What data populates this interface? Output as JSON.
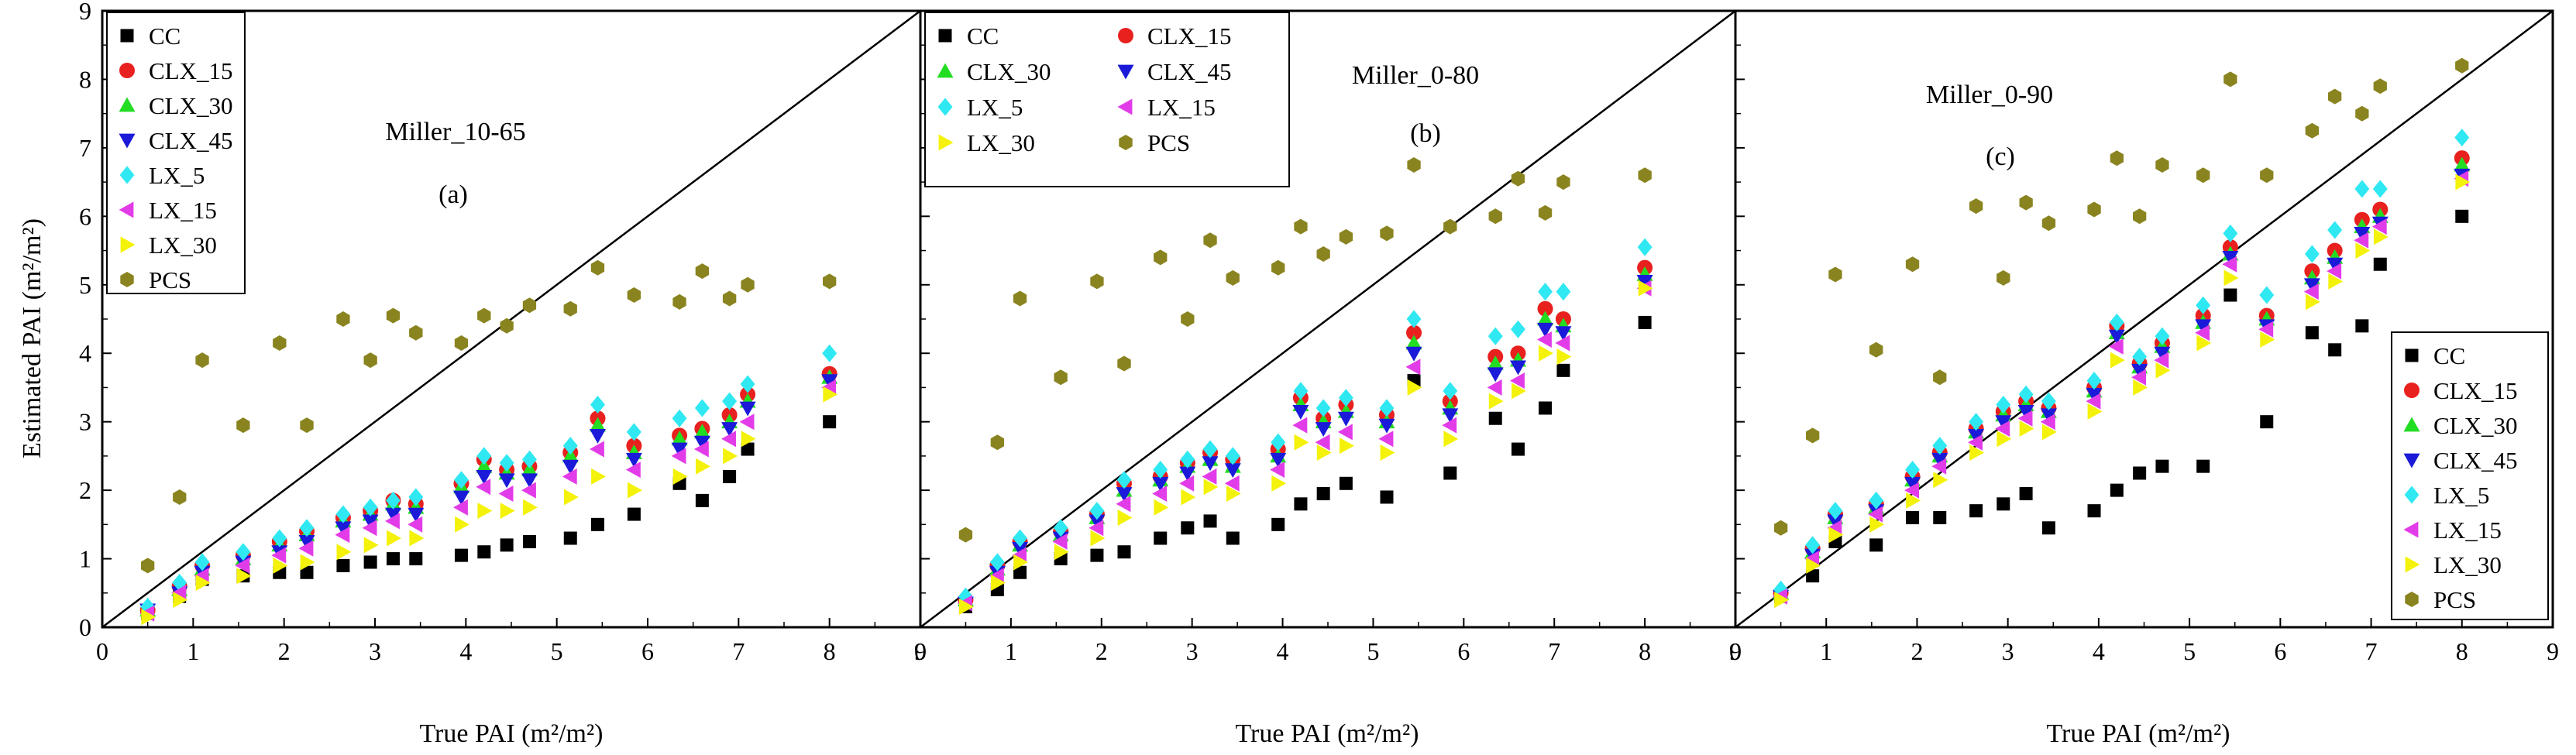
{
  "figure": {
    "shared_ylabel": "Estimated PAI (m²/m²)",
    "shared_xlabel": "True PAI (m²/m²)"
  },
  "series_styles": [
    {
      "name": "CC",
      "marker": "square",
      "color": "#000000"
    },
    {
      "name": "CLX_15",
      "marker": "circle",
      "color": "#e8211f"
    },
    {
      "name": "CLX_30",
      "marker": "triangle-up",
      "color": "#22dd22"
    },
    {
      "name": "CLX_45",
      "marker": "triangle-down",
      "color": "#1a1ad8"
    },
    {
      "name": "LX_5",
      "marker": "diamond",
      "color": "#2fe8f2"
    },
    {
      "name": "LX_15",
      "marker": "triangle-left",
      "color": "#e23ce8"
    },
    {
      "name": "LX_30",
      "marker": "triangle-right",
      "color": "#f4f20a"
    },
    {
      "name": "PCS",
      "marker": "hexagon",
      "color": "#8a8420"
    }
  ],
  "chart_data": [
    {
      "type": "scatter",
      "panel": "a",
      "title": "Miller_10-65",
      "panel_label": "(a)",
      "xlabel": "True PAI (m²/m²)",
      "ylabel": "Estimated PAI (m²/m²)",
      "xlim": [
        0,
        9
      ],
      "ylim": [
        0,
        9
      ],
      "xticks": [
        "0",
        "1",
        "2",
        "3",
        "4",
        "5",
        "6",
        "7",
        "8",
        "9"
      ],
      "yticks": [
        "0",
        "1",
        "2",
        "3",
        "4",
        "5",
        "6",
        "7",
        "8",
        "9"
      ],
      "reference_line": "1:1",
      "legend_position": "top-left",
      "legend_labels": [
        "CC",
        "CLX_15",
        "CLX_30",
        "CLX_45",
        "LX_5",
        "LX_15",
        "LX_30",
        "PCS"
      ],
      "true_pai": [
        0.5,
        0.85,
        1.1,
        1.55,
        1.95,
        2.25,
        2.65,
        2.95,
        3.2,
        3.45,
        3.95,
        4.2,
        4.45,
        4.7,
        5.15,
        5.45,
        5.85,
        6.35,
        6.6,
        6.9,
        7.1,
        8.0
      ],
      "series": [
        {
          "name": "CC",
          "values": [
            0.2,
            0.45,
            0.7,
            0.75,
            0.8,
            0.8,
            0.9,
            0.95,
            1.0,
            1.0,
            1.05,
            1.1,
            1.2,
            1.25,
            1.3,
            1.5,
            1.65,
            2.1,
            1.85,
            2.2,
            2.6,
            3.0
          ]
        },
        {
          "name": "CLX_15",
          "values": [
            0.25,
            0.6,
            0.9,
            1.05,
            1.25,
            1.4,
            1.6,
            1.7,
            1.85,
            1.8,
            2.1,
            2.45,
            2.3,
            2.35,
            2.55,
            3.05,
            2.65,
            2.8,
            2.9,
            3.1,
            3.4,
            3.7
          ]
        },
        {
          "name": "CLX_30",
          "values": [
            0.25,
            0.55,
            0.85,
            1.0,
            1.2,
            1.35,
            1.55,
            1.65,
            1.8,
            1.75,
            2.05,
            2.35,
            2.25,
            2.3,
            2.5,
            2.95,
            2.55,
            2.75,
            2.85,
            3.0,
            3.3,
            3.65
          ]
        },
        {
          "name": "CLX_45",
          "values": [
            0.25,
            0.5,
            0.8,
            0.95,
            1.1,
            1.25,
            1.45,
            1.55,
            1.65,
            1.65,
            1.9,
            2.2,
            2.15,
            2.15,
            2.35,
            2.8,
            2.45,
            2.6,
            2.7,
            2.9,
            3.2,
            3.6
          ]
        },
        {
          "name": "LX_5",
          "values": [
            0.3,
            0.65,
            0.95,
            1.1,
            1.3,
            1.45,
            1.65,
            1.75,
            1.85,
            1.9,
            2.15,
            2.5,
            2.4,
            2.45,
            2.65,
            3.25,
            2.85,
            3.05,
            3.2,
            3.3,
            3.55,
            4.0
          ]
        },
        {
          "name": "LX_15",
          "values": [
            0.2,
            0.5,
            0.75,
            0.9,
            1.05,
            1.15,
            1.35,
            1.45,
            1.55,
            1.5,
            1.75,
            2.05,
            1.95,
            2.0,
            2.2,
            2.6,
            2.3,
            2.5,
            2.6,
            2.75,
            3.0,
            3.5
          ]
        },
        {
          "name": "LX_30",
          "values": [
            0.15,
            0.4,
            0.65,
            0.75,
            0.9,
            0.95,
            1.1,
            1.2,
            1.3,
            1.3,
            1.5,
            1.7,
            1.7,
            1.75,
            1.9,
            2.2,
            2.0,
            2.2,
            2.35,
            2.5,
            2.75,
            3.4
          ]
        },
        {
          "name": "PCS",
          "values": [
            0.9,
            1.9,
            3.9,
            2.95,
            4.15,
            2.95,
            4.5,
            3.9,
            4.55,
            4.3,
            4.15,
            4.55,
            4.4,
            4.7,
            4.65,
            5.25,
            4.85,
            4.75,
            5.2,
            4.8,
            5.0,
            5.05
          ]
        }
      ]
    },
    {
      "type": "scatter",
      "panel": "b",
      "title": "Miller_0-80",
      "panel_label": "(b)",
      "xlabel": "True PAI (m²/m²)",
      "ylabel": "",
      "xlim": [
        0,
        9
      ],
      "ylim": [
        0,
        9
      ],
      "xticks": [
        "0",
        "1",
        "2",
        "3",
        "4",
        "5",
        "6",
        "7",
        "8",
        "9"
      ],
      "yticks": [],
      "reference_line": "1:1",
      "legend_position": "top-left",
      "legend_labels": [
        "CC",
        "CLX_15",
        "CLX_30",
        "CLX_45",
        "LX_5",
        "LX_15",
        "LX_30",
        "PCS"
      ],
      "true_pai": [
        0.5,
        0.85,
        1.1,
        1.55,
        1.95,
        2.25,
        2.65,
        2.95,
        3.2,
        3.45,
        3.95,
        4.2,
        4.45,
        4.7,
        5.15,
        5.45,
        5.85,
        6.35,
        6.6,
        6.9,
        7.1,
        8.0
      ],
      "series": [
        {
          "name": "CC",
          "values": [
            0.3,
            0.55,
            0.8,
            1.0,
            1.05,
            1.1,
            1.3,
            1.45,
            1.55,
            1.3,
            1.5,
            1.8,
            1.95,
            2.1,
            1.9,
            3.6,
            2.25,
            3.05,
            2.6,
            3.2,
            3.75,
            4.45
          ]
        },
        {
          "name": "CLX_15",
          "values": [
            0.4,
            0.9,
            1.25,
            1.4,
            1.65,
            2.1,
            2.2,
            2.4,
            2.55,
            2.45,
            2.6,
            3.35,
            3.05,
            3.25,
            3.1,
            4.3,
            3.3,
            3.95,
            4.0,
            4.65,
            4.5,
            5.25
          ]
        },
        {
          "name": "CLX_30",
          "values": [
            0.4,
            0.85,
            1.2,
            1.35,
            1.6,
            2.0,
            2.15,
            2.35,
            2.45,
            2.35,
            2.5,
            3.25,
            3.0,
            3.15,
            3.0,
            4.15,
            3.2,
            3.85,
            3.9,
            4.5,
            4.4,
            5.15
          ]
        },
        {
          "name": "CLX_45",
          "values": [
            0.35,
            0.8,
            1.15,
            1.3,
            1.55,
            1.95,
            2.1,
            2.25,
            2.4,
            2.3,
            2.45,
            3.15,
            2.9,
            3.05,
            2.95,
            4.0,
            3.1,
            3.7,
            3.8,
            4.35,
            4.3,
            5.05
          ]
        },
        {
          "name": "LX_5",
          "values": [
            0.45,
            0.95,
            1.3,
            1.45,
            1.7,
            2.15,
            2.3,
            2.45,
            2.6,
            2.5,
            2.7,
            3.45,
            3.2,
            3.35,
            3.2,
            4.5,
            3.45,
            4.25,
            4.35,
            4.9,
            4.9,
            5.55
          ]
        },
        {
          "name": "LX_15",
          "values": [
            0.35,
            0.75,
            1.05,
            1.25,
            1.45,
            1.8,
            1.95,
            2.1,
            2.2,
            2.1,
            2.3,
            2.95,
            2.7,
            2.85,
            2.75,
            3.8,
            2.95,
            3.5,
            3.6,
            4.2,
            4.15,
            4.95
          ]
        },
        {
          "name": "LX_30",
          "values": [
            0.3,
            0.65,
            0.95,
            1.1,
            1.3,
            1.6,
            1.75,
            1.9,
            2.05,
            1.95,
            2.1,
            2.7,
            2.55,
            2.65,
            2.55,
            3.5,
            2.75,
            3.3,
            3.45,
            4.0,
            3.95,
            4.95
          ]
        },
        {
          "name": "PCS",
          "values": [
            1.35,
            2.7,
            4.8,
            3.65,
            5.05,
            3.85,
            5.4,
            4.5,
            5.65,
            5.1,
            5.25,
            5.85,
            5.45,
            5.7,
            5.75,
            6.75,
            5.85,
            6.0,
            6.55,
            6.05,
            6.5,
            6.6
          ]
        }
      ]
    },
    {
      "type": "scatter",
      "panel": "c",
      "title": "Miller_0-90",
      "panel_label": "(c)",
      "xlabel": "True PAI (m²/m²)",
      "ylabel": "",
      "xlim": [
        0,
        9
      ],
      "ylim": [
        0,
        9
      ],
      "xticks": [
        "0",
        "1",
        "2",
        "3",
        "4",
        "5",
        "6",
        "7",
        "8",
        "9"
      ],
      "yticks": [],
      "reference_line": "1:1",
      "legend_position": "bottom-right",
      "legend_labels": [
        "CC",
        "CLX_15",
        "CLX_30",
        "CLX_45",
        "LX_5",
        "LX_15",
        "LX_30",
        "PCS"
      ],
      "true_pai": [
        0.5,
        0.85,
        1.1,
        1.55,
        1.95,
        2.25,
        2.65,
        2.95,
        3.2,
        3.45,
        3.95,
        4.2,
        4.45,
        4.7,
        5.15,
        5.45,
        5.85,
        6.35,
        6.6,
        6.9,
        7.1,
        8.0
      ],
      "series": [
        {
          "name": "CC",
          "values": [
            0.45,
            0.75,
            1.25,
            1.2,
            1.6,
            1.6,
            1.7,
            1.8,
            1.95,
            1.45,
            1.7,
            2.0,
            2.25,
            2.35,
            2.35,
            4.85,
            3.0,
            4.3,
            4.05,
            4.4,
            5.3,
            6.0
          ]
        },
        {
          "name": "CLX_15",
          "values": [
            0.5,
            1.15,
            1.65,
            1.8,
            2.2,
            2.55,
            2.9,
            3.15,
            3.3,
            3.2,
            3.5,
            4.4,
            3.85,
            4.15,
            4.55,
            5.55,
            4.55,
            5.2,
            5.5,
            5.95,
            6.1,
            6.85
          ]
        },
        {
          "name": "CLX_30",
          "values": [
            0.5,
            1.1,
            1.6,
            1.75,
            2.15,
            2.5,
            2.85,
            3.1,
            3.25,
            3.15,
            3.45,
            4.3,
            3.8,
            4.1,
            4.45,
            5.45,
            4.5,
            5.1,
            5.4,
            5.85,
            6.0,
            6.75
          ]
        },
        {
          "name": "CLX_45",
          "values": [
            0.45,
            1.05,
            1.55,
            1.7,
            2.1,
            2.45,
            2.8,
            3.0,
            3.15,
            3.1,
            3.4,
            4.25,
            3.75,
            4.0,
            4.4,
            5.4,
            4.4,
            5.0,
            5.3,
            5.75,
            5.9,
            6.6
          ]
        },
        {
          "name": "LX_5",
          "values": [
            0.55,
            1.2,
            1.7,
            1.85,
            2.3,
            2.65,
            3.0,
            3.25,
            3.4,
            3.3,
            3.6,
            4.45,
            3.95,
            4.25,
            4.7,
            5.75,
            4.85,
            5.45,
            5.8,
            6.4,
            6.4,
            7.15
          ]
        },
        {
          "name": "LX_15",
          "values": [
            0.45,
            1.0,
            1.45,
            1.65,
            2.0,
            2.35,
            2.7,
            2.9,
            3.05,
            3.0,
            3.3,
            4.1,
            3.65,
            3.9,
            4.3,
            5.3,
            4.35,
            4.9,
            5.2,
            5.65,
            5.85,
            6.55
          ]
        },
        {
          "name": "LX_30",
          "values": [
            0.4,
            0.9,
            1.35,
            1.5,
            1.85,
            2.15,
            2.55,
            2.75,
            2.9,
            2.85,
            3.15,
            3.9,
            3.5,
            3.75,
            4.15,
            5.1,
            4.2,
            4.75,
            5.05,
            5.5,
            5.7,
            6.5
          ]
        },
        {
          "name": "PCS",
          "values": [
            1.45,
            2.8,
            5.15,
            4.05,
            5.3,
            3.65,
            6.15,
            5.1,
            6.2,
            5.9,
            6.1,
            6.85,
            6.0,
            6.75,
            6.6,
            8.0,
            6.6,
            7.25,
            7.75,
            7.5,
            7.9,
            8.2
          ]
        }
      ]
    }
  ]
}
